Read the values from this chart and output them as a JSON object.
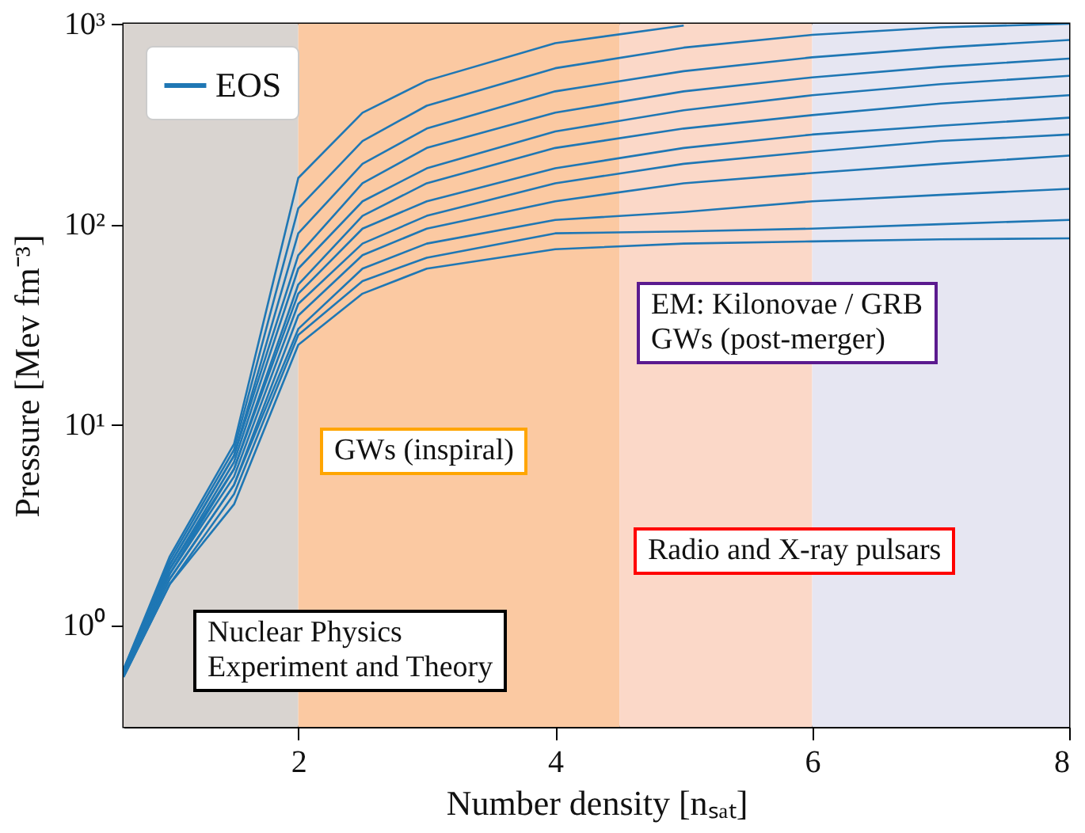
{
  "chart_data": {
    "type": "line",
    "xlabel": "Number density [nₛₐₜ]",
    "ylabel": "Pressure [Mev fm⁻³]",
    "x": [
      0.64,
      1,
      1.5,
      2,
      2.5,
      3,
      4,
      5,
      6,
      7,
      8
    ],
    "xlim": [
      0.64,
      8
    ],
    "xticks": [
      2,
      4,
      6,
      8
    ],
    "ylim": [
      0.31,
      1000
    ],
    "yticks": [
      {
        "value": 1,
        "label": "10⁰"
      },
      {
        "value": 10,
        "label": "10¹"
      },
      {
        "value": 100,
        "label": "10²"
      },
      {
        "value": 1000,
        "label": "10³"
      }
    ],
    "log": "y",
    "grid": false,
    "legend": "top left",
    "series": [
      {
        "name": "EOS",
        "color": "#1f77b4",
        "values": [
          0.6,
          2.2,
          8,
          170,
          360,
          520,
          800,
          980,
          null,
          null,
          null
        ]
      },
      {
        "color": "#1f77b4",
        "values": [
          0.6,
          2.1,
          7.5,
          120,
          260,
          390,
          600,
          760,
          880,
          960,
          1000
        ]
      },
      {
        "color": "#1f77b4",
        "values": [
          0.59,
          2,
          7,
          90,
          200,
          300,
          460,
          580,
          680,
          760,
          830
        ]
      },
      {
        "color": "#1f77b4",
        "values": [
          0.59,
          2,
          7,
          70,
          160,
          240,
          360,
          460,
          540,
          610,
          670
        ]
      },
      {
        "color": "#1f77b4",
        "values": [
          0.58,
          1.9,
          6.5,
          60,
          130,
          190,
          290,
          370,
          440,
          500,
          550
        ]
      },
      {
        "color": "#1f77b4",
        "values": [
          0.58,
          1.9,
          6,
          50,
          110,
          160,
          240,
          300,
          350,
          400,
          440
        ]
      },
      {
        "color": "#1f77b4",
        "values": [
          0.57,
          1.8,
          6,
          45,
          95,
          130,
          190,
          240,
          280,
          310,
          340
        ]
      },
      {
        "color": "#1f77b4",
        "values": [
          0.57,
          1.8,
          5.5,
          40,
          80,
          110,
          160,
          200,
          230,
          260,
          280
        ]
      },
      {
        "color": "#1f77b4",
        "values": [
          0.56,
          1.7,
          5,
          35,
          70,
          95,
          130,
          160,
          180,
          200,
          220
        ]
      },
      {
        "color": "#1f77b4",
        "values": [
          0.56,
          1.7,
          5,
          30,
          60,
          80,
          105,
          115,
          130,
          140,
          150
        ]
      },
      {
        "color": "#1f77b4",
        "values": [
          0.55,
          1.6,
          4.5,
          28,
          52,
          68,
          90,
          92,
          95,
          100,
          105
        ]
      },
      {
        "color": "#1f77b4",
        "values": [
          0.55,
          1.6,
          4,
          25,
          45,
          60,
          75,
          80,
          82,
          84,
          85
        ]
      }
    ],
    "bands": [
      {
        "axis": "x",
        "from": 0.64,
        "to": 2,
        "label": "Nuclear Physics\nExperiment and Theory",
        "color": "#d9d4d0"
      },
      {
        "axis": "x",
        "from": 2,
        "to": 4.5,
        "label": "GWs (inspiral)",
        "color": "#fbc9a2"
      },
      {
        "axis": "x",
        "from": 4.5,
        "to": 6,
        "label": "Radio and X-ray pulsars",
        "color": "#fbd8c8"
      },
      {
        "axis": "x",
        "from": 6,
        "to": 8,
        "label": "EM: Kilonovae / GRB\nGWs (post-merger)",
        "color": "#e6e6f2"
      }
    ]
  }
}
